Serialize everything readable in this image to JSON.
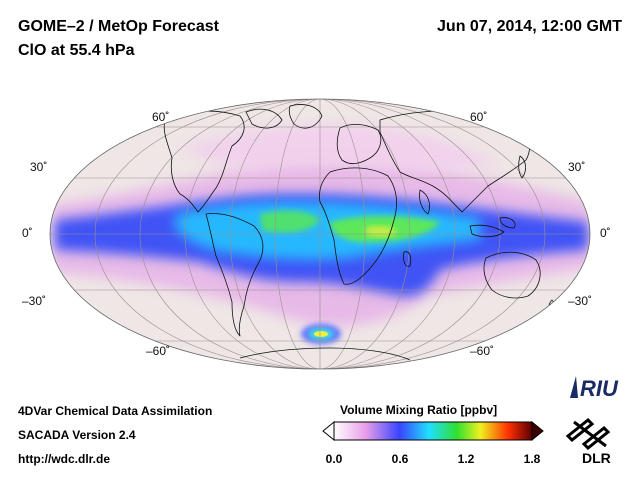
{
  "header": {
    "title": "GOME–2 / MetOp Forecast",
    "subtitle": "ClO at 55.4 hPa",
    "datetime": "Jun 07, 2014, 12:00 GMT"
  },
  "map": {
    "projection": "Mollweide",
    "lat_labels_left": [
      "60˚",
      "30˚",
      "0˚",
      "–30˚",
      "–60˚"
    ],
    "lat_labels_right": [
      "60˚",
      "30˚",
      "0˚",
      "–30˚",
      "–60˚"
    ],
    "background_color": "#efe6e6"
  },
  "colorbar": {
    "title": "Volume Mixing Ratio [ppbv]",
    "ticks": [
      "0.0",
      "0.6",
      "1.2",
      "1.8"
    ],
    "colors": [
      "#ffffff",
      "#e89ee8",
      "#3a44ff",
      "#20e0ff",
      "#30e030",
      "#f0f020",
      "#ff3000",
      "#5a0000"
    ]
  },
  "footer": {
    "line1": "4DVar Chemical Data Assimilation",
    "line2": "SACADA Version 2.4",
    "line3": "http://wdc.dlr.de"
  },
  "logos": {
    "riu": "RIU",
    "dlr": "DLR"
  }
}
